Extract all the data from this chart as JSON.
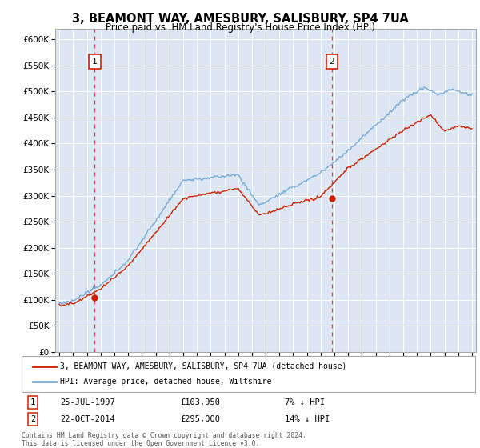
{
  "title": "3, BEAMONT WAY, AMESBURY, SALISBURY, SP4 7UA",
  "subtitle": "Price paid vs. HM Land Registry's House Price Index (HPI)",
  "legend_label_red": "3, BEAMONT WAY, AMESBURY, SALISBURY, SP4 7UA (detached house)",
  "legend_label_blue": "HPI: Average price, detached house, Wiltshire",
  "annotation1_date": "25-JUL-1997",
  "annotation1_price": "£103,950",
  "annotation1_hpi": "7% ↓ HPI",
  "annotation2_date": "22-OCT-2014",
  "annotation2_price": "£295,000",
  "annotation2_hpi": "14% ↓ HPI",
  "footer": "Contains HM Land Registry data © Crown copyright and database right 2024.\nThis data is licensed under the Open Government Licence v3.0.",
  "ylim": [
    0,
    620000
  ],
  "yticks": [
    0,
    50000,
    100000,
    150000,
    200000,
    250000,
    300000,
    350000,
    400000,
    450000,
    500000,
    550000,
    600000
  ],
  "bg_color": "#dce7f3",
  "red_color": "#cc2200",
  "blue_color": "#7aaad4",
  "dashed_color": "#dd4444",
  "marker1_x": 1997.57,
  "marker1_y": 103950,
  "marker2_x": 2014.81,
  "marker2_y": 295000,
  "xmin": 1994.7,
  "xmax": 2025.3
}
